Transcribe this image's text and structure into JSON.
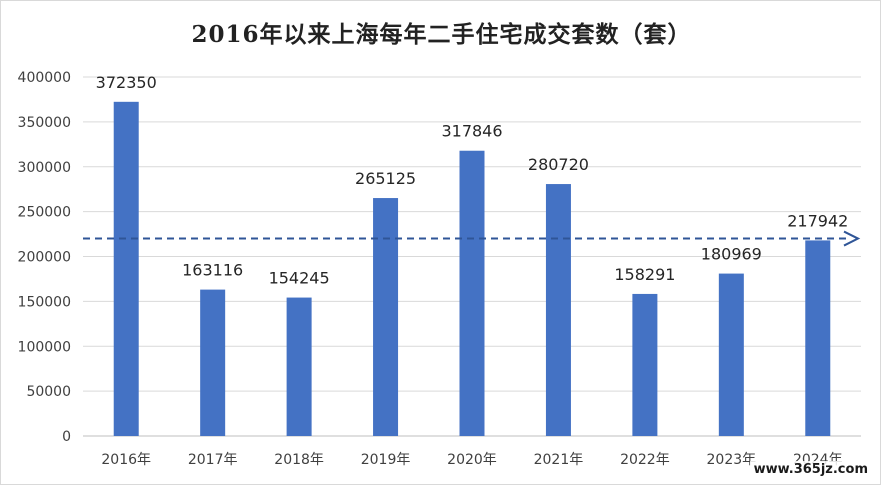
{
  "chart_data": {
    "type": "bar",
    "title": "2016年以来上海每年二手住宅成交套数（套）",
    "xlabel": "",
    "ylabel": "",
    "categories": [
      "2016年",
      "2017年",
      "2018年",
      "2019年",
      "2020年",
      "2021年",
      "2022年",
      "2023年",
      "2024年"
    ],
    "series": [
      {
        "values": [
          372350,
          163116,
          154245,
          265125,
          317846,
          280720,
          158291,
          180969,
          217942
        ]
      }
    ],
    "data_labels": [
      "372350",
      "163116",
      "154245",
      "265125",
      "317846",
      "280720",
      "158291",
      "180969",
      "217942"
    ],
    "ylim": [
      0,
      400000
    ],
    "yticks": [
      0,
      50000,
      100000,
      150000,
      200000,
      250000,
      300000,
      350000,
      400000
    ],
    "ytick_labels": [
      "0",
      "50000",
      "100000",
      "150000",
      "200000",
      "250000",
      "300000",
      "350000",
      "400000"
    ],
    "reference_line": {
      "value": 220000,
      "style": "dashed-arrow"
    },
    "grid": true,
    "legend": "none",
    "colors": {
      "bar": "#4472C4",
      "reference_line": "#2F5597",
      "grid": "#d9d9d9"
    }
  },
  "watermark": "www.365jz.com"
}
